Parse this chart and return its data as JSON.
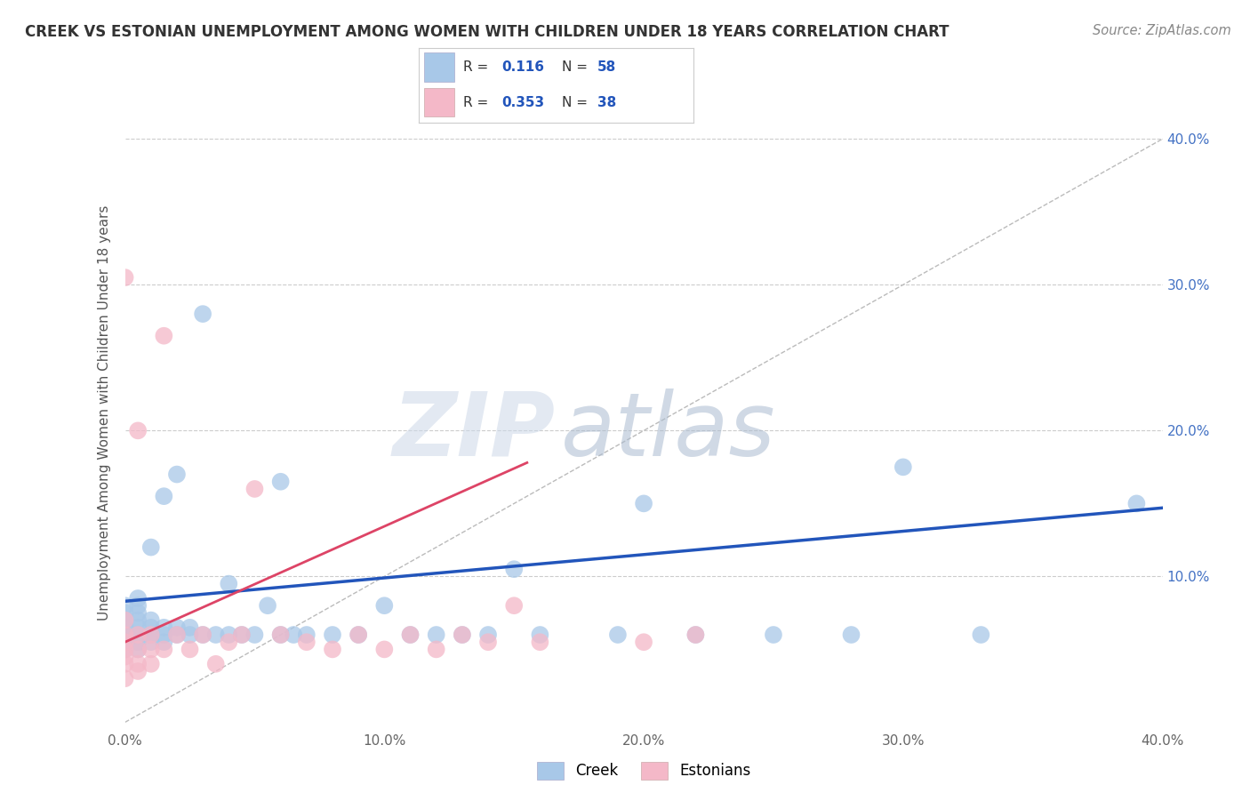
{
  "title": "CREEK VS ESTONIAN UNEMPLOYMENT AMONG WOMEN WITH CHILDREN UNDER 18 YEARS CORRELATION CHART",
  "source": "Source: ZipAtlas.com",
  "ylabel": "Unemployment Among Women with Children Under 18 years",
  "xlim": [
    0.0,
    0.4
  ],
  "ylim": [
    -0.005,
    0.43
  ],
  "xticks": [
    0.0,
    0.1,
    0.2,
    0.3,
    0.4
  ],
  "yticks": [
    0.1,
    0.2,
    0.3,
    0.4
  ],
  "xticklabels": [
    "0.0%",
    "10.0%",
    "20.0%",
    "30.0%",
    "40.0%"
  ],
  "yticklabels_right": [
    "10.0%",
    "20.0%",
    "30.0%",
    "40.0%"
  ],
  "creek_color": "#a8c8e8",
  "estonian_color": "#f4b8c8",
  "creek_line_color": "#2255bb",
  "estonian_line_color": "#dd4466",
  "grid_color": "#cccccc",
  "diag_color": "#bbbbbb",
  "creek_R": 0.116,
  "creek_N": 58,
  "estonian_R": 0.353,
  "estonian_N": 38,
  "legend_label_creek": "Creek",
  "legend_label_estonian": "Estonians",
  "watermark_zip": "ZIP",
  "watermark_atlas": "atlas",
  "creek_scatter_x": [
    0.0,
    0.0,
    0.0,
    0.0,
    0.0,
    0.0,
    0.0,
    0.005,
    0.005,
    0.005,
    0.005,
    0.005,
    0.005,
    0.005,
    0.005,
    0.01,
    0.01,
    0.01,
    0.01,
    0.01,
    0.015,
    0.015,
    0.015,
    0.015,
    0.02,
    0.02,
    0.02,
    0.025,
    0.025,
    0.03,
    0.03,
    0.035,
    0.04,
    0.04,
    0.045,
    0.05,
    0.055,
    0.06,
    0.06,
    0.065,
    0.07,
    0.08,
    0.09,
    0.1,
    0.11,
    0.12,
    0.13,
    0.14,
    0.15,
    0.16,
    0.19,
    0.2,
    0.22,
    0.25,
    0.28,
    0.3,
    0.33,
    0.39
  ],
  "creek_scatter_y": [
    0.05,
    0.055,
    0.06,
    0.065,
    0.07,
    0.075,
    0.08,
    0.05,
    0.055,
    0.06,
    0.065,
    0.07,
    0.075,
    0.08,
    0.085,
    0.055,
    0.06,
    0.065,
    0.07,
    0.12,
    0.055,
    0.06,
    0.065,
    0.155,
    0.06,
    0.065,
    0.17,
    0.06,
    0.065,
    0.06,
    0.28,
    0.06,
    0.06,
    0.095,
    0.06,
    0.06,
    0.08,
    0.06,
    0.165,
    0.06,
    0.06,
    0.06,
    0.06,
    0.08,
    0.06,
    0.06,
    0.06,
    0.06,
    0.105,
    0.06,
    0.06,
    0.15,
    0.06,
    0.06,
    0.06,
    0.175,
    0.06,
    0.15
  ],
  "estonian_scatter_x": [
    0.0,
    0.0,
    0.0,
    0.0,
    0.0,
    0.0,
    0.0,
    0.0,
    0.005,
    0.005,
    0.005,
    0.005,
    0.005,
    0.01,
    0.01,
    0.01,
    0.015,
    0.015,
    0.02,
    0.025,
    0.03,
    0.035,
    0.04,
    0.045,
    0.05,
    0.06,
    0.07,
    0.08,
    0.09,
    0.1,
    0.11,
    0.12,
    0.13,
    0.14,
    0.15,
    0.16,
    0.2,
    0.22
  ],
  "estonian_scatter_y": [
    0.03,
    0.04,
    0.045,
    0.05,
    0.055,
    0.06,
    0.07,
    0.305,
    0.035,
    0.04,
    0.05,
    0.06,
    0.2,
    0.04,
    0.05,
    0.06,
    0.05,
    0.265,
    0.06,
    0.05,
    0.06,
    0.04,
    0.055,
    0.06,
    0.16,
    0.06,
    0.055,
    0.05,
    0.06,
    0.05,
    0.06,
    0.05,
    0.06,
    0.055,
    0.08,
    0.055,
    0.055,
    0.06
  ],
  "creek_line_x0": 0.0,
  "creek_line_x1": 0.4,
  "creek_line_y0": 0.083,
  "creek_line_y1": 0.147,
  "estonian_line_x0": 0.0,
  "estonian_line_x1": 0.155,
  "estonian_line_y0": 0.055,
  "estonian_line_y1": 0.178
}
